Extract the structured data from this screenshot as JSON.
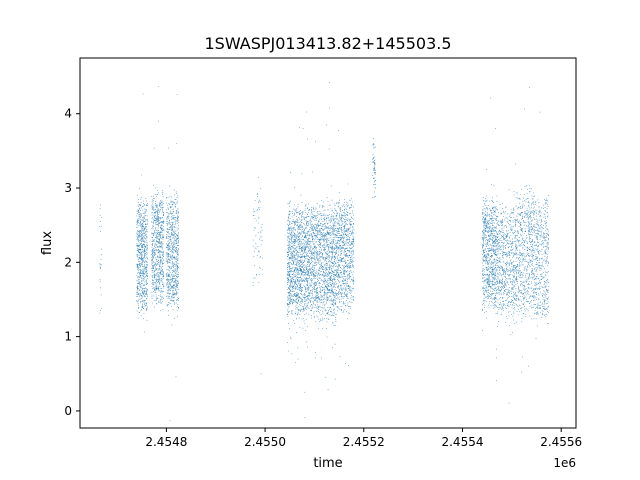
{
  "chart_data": {
    "type": "scatter",
    "title": "1SWASPJ013413.82+145503.5",
    "xlabel": "time",
    "ylabel": "flux",
    "x_offset_label": "1e6",
    "xlim": [
      2454625,
      2455630
    ],
    "ylim": [
      -0.23,
      4.75
    ],
    "x_ticks": [
      2454800,
      2455000,
      2455200,
      2455400,
      2455600
    ],
    "x_tick_labels": [
      "2.4548",
      "2.4550",
      "2.4552",
      "2.4554",
      "2.4556"
    ],
    "y_ticks": [
      0,
      1,
      2,
      3,
      4
    ],
    "y_tick_labels": [
      "0",
      "1",
      "2",
      "3",
      "4"
    ],
    "grid": false,
    "legend": "none",
    "marker_color": "#1f77b4",
    "series": [
      {
        "clusters": [
          {
            "x_range": [
              2454665,
              2454669
            ],
            "y_median": 2.1,
            "y_spread": 0.9,
            "count": 25
          },
          {
            "x_range": [
              2454740,
              2454762
            ],
            "y_median": 2.1,
            "y_spread": 0.8,
            "count": 700
          },
          {
            "x_range": [
              2454770,
              2454795
            ],
            "y_median": 2.2,
            "y_spread": 0.8,
            "count": 700
          },
          {
            "x_range": [
              2454800,
              2454825
            ],
            "y_median": 2.1,
            "y_spread": 0.8,
            "count": 700
          },
          {
            "x_range": [
              2454975,
              2454995
            ],
            "y_median": 2.4,
            "y_spread": 0.8,
            "count": 70
          },
          {
            "x_range": [
              2455045,
              2455075
            ],
            "y_median": 2.0,
            "y_spread": 0.8,
            "count": 900
          },
          {
            "x_range": [
              2455075,
              2455110
            ],
            "y_median": 2.0,
            "y_spread": 0.8,
            "count": 900
          },
          {
            "x_range": [
              2455110,
              2455145
            ],
            "y_median": 2.0,
            "y_spread": 0.8,
            "count": 900
          },
          {
            "x_range": [
              2455145,
              2455180
            ],
            "y_median": 2.1,
            "y_spread": 0.8,
            "count": 800
          },
          {
            "x_range": [
              2455218,
              2455224
            ],
            "y_median": 3.3,
            "y_spread": 0.3,
            "count": 60
          },
          {
            "x_range": [
              2455440,
              2455470
            ],
            "y_median": 2.1,
            "y_spread": 0.8,
            "count": 800
          },
          {
            "x_range": [
              2455470,
              2455510
            ],
            "y_median": 2.0,
            "y_spread": 0.8,
            "count": 700
          },
          {
            "x_range": [
              2455510,
              2455550
            ],
            "y_median": 2.1,
            "y_spread": 0.9,
            "count": 700
          },
          {
            "x_range": [
              2455550,
              2455575
            ],
            "y_median": 2.0,
            "y_spread": 0.9,
            "count": 400
          }
        ]
      }
    ]
  }
}
